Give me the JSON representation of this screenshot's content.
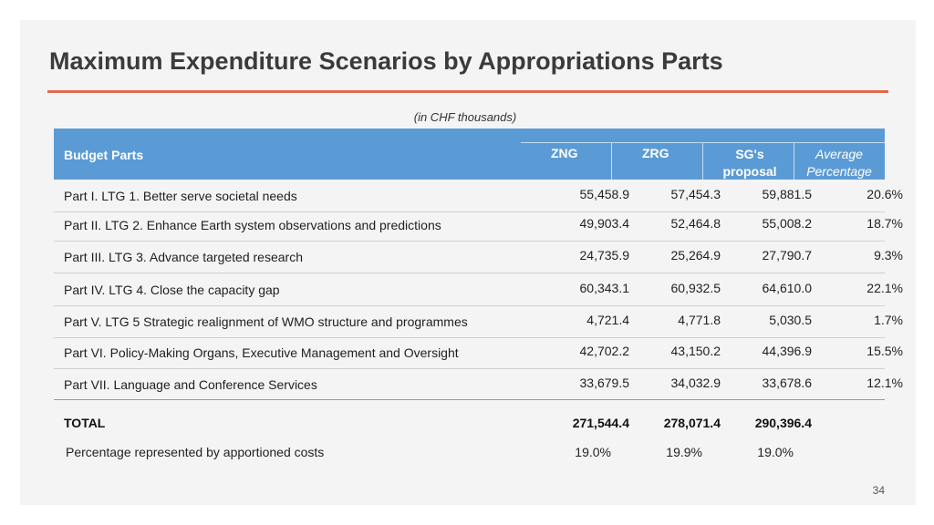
{
  "title": "Maximum Expenditure Scenarios by Appropriations Parts",
  "subtitle": "(in CHF thousands)",
  "header": {
    "budget_parts": "Budget Parts",
    "zng": "ZNG",
    "zrg": "ZRG",
    "sg_line1": "SG's",
    "sg_line2": "proposal",
    "avg_line1": "Average",
    "avg_line2": "Percentage"
  },
  "rows": [
    {
      "label": "Part I. LTG 1. Better serve societal needs",
      "zng": "55,458.9",
      "zrg": "57,454.3",
      "sg": "59,881.5",
      "avg": "20.6%"
    },
    {
      "label": "Part II. LTG 2. Enhance Earth system observations and predictions",
      "zng": "49,903.4",
      "zrg": "52,464.8",
      "sg": "55,008.2",
      "avg": "18.7%"
    },
    {
      "label": "Part III. LTG 3. Advance targeted research",
      "zng": "24,735.9",
      "zrg": "25,264.9",
      "sg": "27,790.7",
      "avg": "9.3%"
    },
    {
      "label": "Part IV. LTG 4. Close the capacity gap",
      "zng": "60,343.1",
      "zrg": "60,932.5",
      "sg": "64,610.0",
      "avg": "22.1%"
    },
    {
      "label": "Part V. LTG 5 Strategic realignment of WMO structure and programmes",
      "zng": "4,721.4",
      "zrg": "4,771.8",
      "sg": "5,030.5",
      "avg": "1.7%"
    },
    {
      "label": "Part VI. Policy-Making Organs, Executive Management and Oversight",
      "zng": "42,702.2",
      "zrg": "43,150.2",
      "sg": "44,396.9",
      "avg": "15.5%"
    },
    {
      "label": "Part VII. Language and Conference Services",
      "zng": "33,679.5",
      "zrg": "34,032.9",
      "sg": "33,678.6",
      "avg": "12.1%"
    }
  ],
  "total": {
    "label": "TOTAL",
    "zng": "271,544.4",
    "zrg": "278,071.4",
    "sg": "290,396.4"
  },
  "apportioned": {
    "label": "Percentage represented by apportioned costs",
    "zng": "19.0%",
    "zrg": "19.9%",
    "sg": "19.0%"
  },
  "page_number": "34",
  "colors": {
    "header_bg": "#5b9bd5",
    "title_rule": "#e06a4c",
    "slide_bg": "#f4f4f4"
  }
}
